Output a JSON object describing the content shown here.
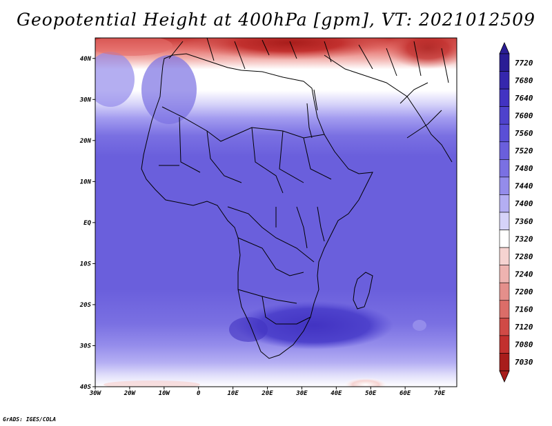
{
  "title": "Geopotential Height at 400hPa [gpm], VT: 2021012509",
  "credit": "GrADS: IGES/COLA",
  "map": {
    "lon_ticks": [
      "30W",
      "20W",
      "10W",
      "0",
      "10E",
      "20E",
      "30E",
      "40E",
      "50E",
      "60E",
      "70E"
    ],
    "lat_ticks": [
      "40N",
      "30N",
      "20N",
      "10N",
      "EQ",
      "10S",
      "20S",
      "30S",
      "40S"
    ],
    "extent": {
      "lon_min": -30,
      "lon_max": 75,
      "lat_min": -40,
      "lat_max": 45
    }
  },
  "colorbar": {
    "labels": [
      "7720",
      "7680",
      "7640",
      "7600",
      "7560",
      "7520",
      "7480",
      "7440",
      "7400",
      "7360",
      "7320",
      "7280",
      "7240",
      "7200",
      "7160",
      "7120",
      "7080",
      "7030"
    ],
    "colors": [
      "#2a1d95",
      "#3527ad",
      "#4233c2",
      "#4e42cc",
      "#5a4fd6",
      "#6a5fdc",
      "#7a70e2",
      "#948ceb",
      "#b4aef3",
      "#d6d3f9",
      "#ffffff",
      "#f6d3d1",
      "#eeb3b0",
      "#e48f8b",
      "#db6d68",
      "#d04a46",
      "#c2302e",
      "#a81d1b"
    ]
  }
}
